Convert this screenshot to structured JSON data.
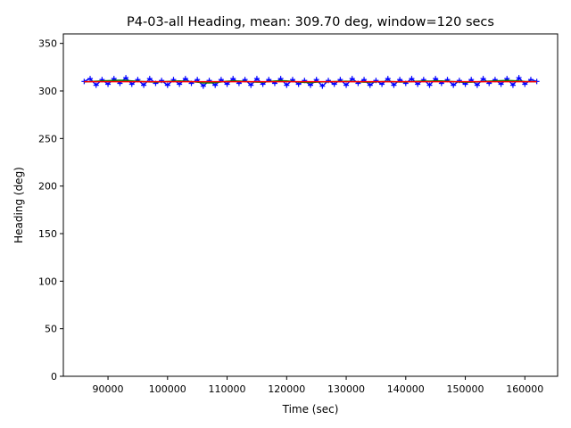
{
  "chart_data": {
    "type": "line",
    "title": "P4-03-all Heading, mean: 309.70 deg, window=120 secs",
    "xlabel": "Time (sec)",
    "ylabel": "Heading (deg)",
    "xlim": [
      82500,
      165500
    ],
    "ylim": [
      0,
      360
    ],
    "xticks": [
      90000,
      100000,
      110000,
      120000,
      130000,
      140000,
      150000,
      160000
    ],
    "yticks": [
      0,
      50,
      100,
      150,
      200,
      250,
      300,
      350
    ],
    "grid": false,
    "mean": 309.7,
    "colors": {
      "raw": "#0000ff",
      "smoothed": "#008000",
      "mean": "#ff0000"
    },
    "x": [
      86000,
      87000,
      88000,
      89000,
      90000,
      91000,
      92000,
      93000,
      94000,
      95000,
      96000,
      97000,
      98000,
      99000,
      100000,
      101000,
      102000,
      103000,
      104000,
      105000,
      106000,
      107000,
      108000,
      109000,
      110000,
      111000,
      112000,
      113000,
      114000,
      115000,
      116000,
      117000,
      118000,
      119000,
      120000,
      121000,
      122000,
      123000,
      124000,
      125000,
      126000,
      127000,
      128000,
      129000,
      130000,
      131000,
      132000,
      133000,
      134000,
      135000,
      136000,
      137000,
      138000,
      139000,
      140000,
      141000,
      142000,
      143000,
      144000,
      145000,
      146000,
      147000,
      148000,
      149000,
      150000,
      151000,
      152000,
      153000,
      154000,
      155000,
      156000,
      157000,
      158000,
      159000,
      160000,
      161000,
      162000
    ],
    "series": [
      {
        "key": "raw",
        "values": [
          310,
          313,
          306,
          312,
          307,
          313,
          308,
          314,
          307,
          312,
          306,
          313,
          308,
          311,
          306,
          312,
          307,
          313,
          308,
          312,
          305,
          311,
          306,
          312,
          307,
          313,
          308,
          312,
          306,
          313,
          307,
          312,
          308,
          313,
          306,
          312,
          307,
          311,
          306,
          312,
          305,
          311,
          307,
          312,
          306,
          313,
          308,
          312,
          306,
          311,
          307,
          313,
          306,
          312,
          308,
          313,
          307,
          312,
          306,
          313,
          308,
          312,
          306,
          311,
          307,
          312,
          306,
          313,
          308,
          312,
          307,
          313,
          306,
          314,
          307,
          312,
          310
        ]
      },
      {
        "key": "smoothed",
        "values": [
          309.5,
          309.8,
          310.2,
          310.5,
          310.8,
          311,
          311.2,
          311,
          310.6,
          310.2,
          309.8,
          309.5,
          309.4,
          309.6,
          310,
          310.3,
          310.5,
          310.2,
          309.8,
          309.2,
          308.6,
          308.4,
          308.8,
          309.5,
          310.2,
          310.6,
          310.4,
          310,
          309.6,
          309.2,
          309.3,
          309.8,
          310.4,
          310.8,
          310.6,
          310,
          309.4,
          309,
          308.8,
          309.2,
          309.5,
          309.6,
          309.8,
          310,
          310.2,
          310,
          309.6,
          309.3,
          309.2,
          309.5,
          309.8,
          310,
          309.7,
          309.4,
          309.5,
          309.9,
          310.2,
          310.4,
          310.3,
          310.5,
          310.6,
          310.2,
          309.8,
          309.4,
          309.2,
          309.3,
          309.6,
          310,
          310.3,
          310.5,
          310.8,
          311,
          310.8,
          310.4,
          310,
          309.8,
          309.7
        ]
      }
    ]
  }
}
